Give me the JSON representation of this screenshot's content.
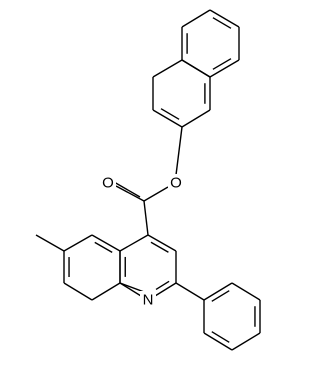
{
  "atoms": [
    {
      "label": "O"
    },
    {
      "label": "O"
    },
    {
      "label": "N"
    }
  ]
}
